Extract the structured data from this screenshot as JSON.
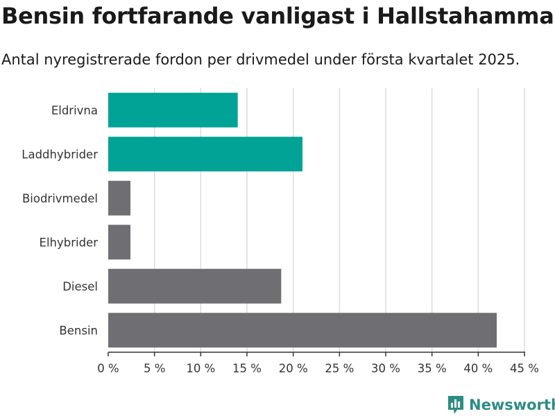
{
  "header": {
    "title": "Bensin fortfarande vanligast i Hallstahammar",
    "subtitle": "Antal nyregistrerade fordon per drivmedel under första kvartalet 2025."
  },
  "brand": {
    "name": "Newsworthy",
    "color": "#2e8c83",
    "icon": "bar-chart-logo-icon"
  },
  "colors": {
    "highlight": "#00a395",
    "neutral": "#6f6e73",
    "grid": "#dcdcdc",
    "axis": "#333333"
  },
  "chart_data": {
    "type": "bar",
    "orientation": "horizontal",
    "categories": [
      "Eldrivna",
      "Laddhybrider",
      "Biodrivmedel",
      "Elhybrider",
      "Diesel",
      "Bensin"
    ],
    "values": [
      14.0,
      21.0,
      2.4,
      2.4,
      18.7,
      42.0
    ],
    "highlight": [
      true,
      true,
      false,
      false,
      false,
      false
    ],
    "xlim": [
      0,
      45
    ],
    "ticks": [
      0,
      5,
      10,
      15,
      20,
      25,
      30,
      35,
      40,
      45
    ],
    "tick_labels": [
      "0 %",
      "5 %",
      "10 %",
      "15 %",
      "20 %",
      "25 %",
      "30 %",
      "35 %",
      "40 %",
      "45 %"
    ],
    "grid": true,
    "legend": "none"
  }
}
